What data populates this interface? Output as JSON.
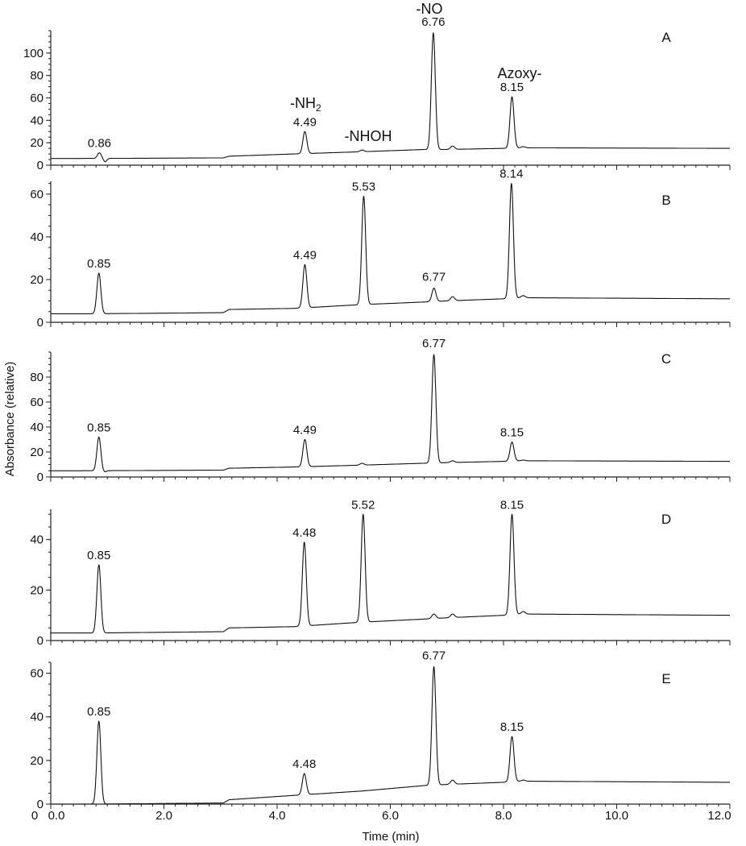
{
  "chart_data": {
    "type": "line",
    "xlabel": "Time (min)",
    "ylabel": "Absorbance (relative)",
    "xlim": [
      0,
      12
    ],
    "x_ticks": [
      "0",
      "0.0",
      "2.0",
      "4.0",
      "6.0",
      "8.0",
      "10.0",
      "12.0"
    ],
    "x_tick_values": [
      0,
      0,
      2,
      4,
      6,
      8,
      10,
      12
    ],
    "compound_labels": [
      {
        "text": "-NO",
        "panel": "A"
      },
      {
        "text": "Azoxy-",
        "panel": "A"
      },
      {
        "text": "-NH",
        "subscript": "2",
        "panel": "A"
      },
      {
        "text": "-NHOH",
        "panel": "A"
      }
    ],
    "panels": [
      {
        "name": "A",
        "ylim": [
          0,
          120
        ],
        "y_ticks": [
          0,
          20,
          40,
          60,
          80,
          100
        ],
        "baseline": [
          [
            0,
            6
          ],
          [
            0.78,
            6
          ],
          [
            3.05,
            6.5
          ],
          [
            3.15,
            8
          ],
          [
            4.3,
            10
          ],
          [
            5.5,
            12
          ],
          [
            6.6,
            14
          ],
          [
            7.0,
            14
          ],
          [
            8.0,
            15
          ],
          [
            8.3,
            15.5
          ],
          [
            12,
            15
          ]
        ],
        "peaks": [
          {
            "label": "0.86",
            "time": 0.86,
            "height": 11,
            "dip": 3
          },
          {
            "label": "4.49",
            "time": 4.49,
            "height": 30
          },
          {
            "label": "",
            "time": 5.5,
            "height": 13.5
          },
          {
            "label": "6.76",
            "time": 6.76,
            "height": 118
          },
          {
            "label": "",
            "time": 7.1,
            "height": 17
          },
          {
            "label": "8.15",
            "time": 8.15,
            "height": 61
          },
          {
            "label": "",
            "time": 8.35,
            "height": 16.5
          }
        ]
      },
      {
        "name": "B",
        "ylim": [
          0,
          66
        ],
        "y_ticks": [
          0,
          20,
          40,
          60
        ],
        "baseline": [
          [
            0,
            4
          ],
          [
            0.78,
            4
          ],
          [
            3.05,
            4.5
          ],
          [
            3.15,
            6
          ],
          [
            4.3,
            6.5
          ],
          [
            5.3,
            8
          ],
          [
            5.7,
            8.5
          ],
          [
            6.6,
            9.5
          ],
          [
            7.0,
            10
          ],
          [
            8.0,
            11
          ],
          [
            8.3,
            11.5
          ],
          [
            12,
            11
          ]
        ],
        "peaks": [
          {
            "label": "0.85",
            "time": 0.85,
            "height": 23,
            "dip": 0
          },
          {
            "label": "4.49",
            "time": 4.49,
            "height": 27
          },
          {
            "label": "5.53",
            "time": 5.53,
            "height": 59
          },
          {
            "label": "6.77",
            "time": 6.77,
            "height": 16
          },
          {
            "label": "",
            "time": 7.1,
            "height": 12
          },
          {
            "label": "8.14",
            "time": 8.14,
            "height": 65
          },
          {
            "label": "",
            "time": 8.35,
            "height": 12.5
          }
        ]
      },
      {
        "name": "C",
        "ylim": [
          0,
          100
        ],
        "y_ticks": [
          0,
          20,
          40,
          60,
          80
        ],
        "baseline": [
          [
            0,
            5
          ],
          [
            0.78,
            5
          ],
          [
            3.05,
            5.5
          ],
          [
            3.15,
            7
          ],
          [
            4.3,
            8
          ],
          [
            5.5,
            9.5
          ],
          [
            6.6,
            11
          ],
          [
            7.0,
            11.5
          ],
          [
            8.0,
            12.5
          ],
          [
            8.3,
            13
          ],
          [
            12,
            12.5
          ]
        ],
        "peaks": [
          {
            "label": "0.85",
            "time": 0.85,
            "height": 32,
            "dip": 1
          },
          {
            "label": "4.49",
            "time": 4.49,
            "height": 30
          },
          {
            "label": "",
            "time": 5.5,
            "height": 11
          },
          {
            "label": "6.77",
            "time": 6.77,
            "height": 98
          },
          {
            "label": "",
            "time": 7.1,
            "height": 13
          },
          {
            "label": "8.15",
            "time": 8.15,
            "height": 28
          },
          {
            "label": "",
            "time": 8.35,
            "height": 13.5
          }
        ]
      },
      {
        "name": "D",
        "ylim": [
          0,
          52
        ],
        "y_ticks": [
          0,
          20,
          40
        ],
        "baseline": [
          [
            0,
            3
          ],
          [
            0.78,
            3
          ],
          [
            3.05,
            3.5
          ],
          [
            3.15,
            5
          ],
          [
            4.3,
            5.5
          ],
          [
            5.3,
            7
          ],
          [
            5.7,
            7.5
          ],
          [
            6.6,
            8.5
          ],
          [
            7.0,
            9
          ],
          [
            8.0,
            10
          ],
          [
            8.3,
            10.5
          ],
          [
            12,
            10
          ]
        ],
        "peaks": [
          {
            "label": "0.85",
            "time": 0.85,
            "height": 30,
            "dip": 0
          },
          {
            "label": "4.48",
            "time": 4.48,
            "height": 39
          },
          {
            "label": "5.52",
            "time": 5.52,
            "height": 50
          },
          {
            "label": "",
            "time": 6.77,
            "height": 10.5
          },
          {
            "label": "",
            "time": 7.1,
            "height": 10.5
          },
          {
            "label": "8.15",
            "time": 8.15,
            "height": 50
          },
          {
            "label": "",
            "time": 8.35,
            "height": 11.5
          }
        ]
      },
      {
        "name": "E",
        "ylim": [
          0,
          65
        ],
        "y_ticks": [
          0,
          20,
          40,
          60
        ],
        "baseline": [
          [
            0,
            0
          ],
          [
            0.78,
            0
          ],
          [
            3.05,
            0.5
          ],
          [
            3.15,
            2
          ],
          [
            4.3,
            4
          ],
          [
            5.5,
            6
          ],
          [
            6.6,
            8.5
          ],
          [
            7.0,
            9
          ],
          [
            8.0,
            10
          ],
          [
            8.3,
            10.5
          ],
          [
            12,
            10
          ]
        ],
        "peaks": [
          {
            "label": "0.85",
            "time": 0.85,
            "height": 38,
            "dip": 0
          },
          {
            "label": "4.48",
            "time": 4.48,
            "height": 14
          },
          {
            "label": "6.77",
            "time": 6.77,
            "height": 63
          },
          {
            "label": "",
            "time": 7.1,
            "height": 11
          },
          {
            "label": "8.15",
            "time": 8.15,
            "height": 31
          },
          {
            "label": "",
            "time": 8.35,
            "height": 11
          }
        ]
      }
    ]
  }
}
